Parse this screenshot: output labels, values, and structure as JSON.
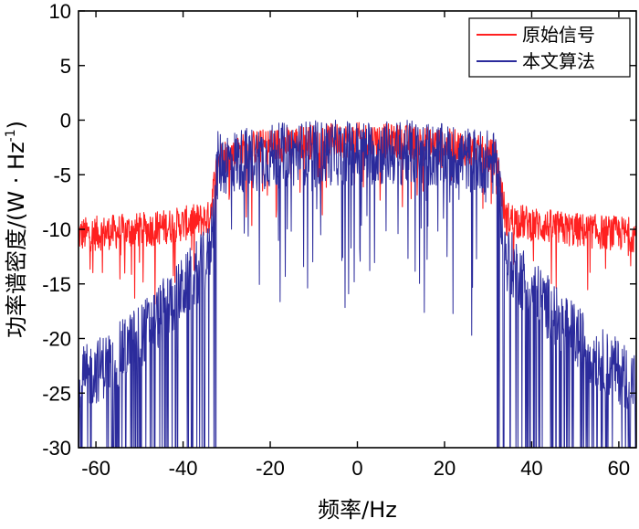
{
  "chart_data": {
    "type": "line",
    "title": "",
    "xlabel": "频率/Hz",
    "ylabel": "功率谱密度/(W · Hz",
    "ylabel_superscript": "-1",
    "ylabel_close": ")",
    "xlim": [
      -64,
      64
    ],
    "ylim": [
      -30,
      10
    ],
    "xticks": [
      -60,
      -40,
      -20,
      0,
      20,
      40,
      60
    ],
    "xtick_labels": [
      "-60",
      "-40",
      "-20",
      "0",
      "20",
      "40",
      "60"
    ],
    "yticks": [
      10,
      5,
      0,
      -5,
      -10,
      -15,
      -20,
      -25,
      -30
    ],
    "ytick_labels": [
      "10",
      "5",
      "0",
      "-5",
      "-10",
      "-15",
      "-20",
      "-25",
      "-30"
    ],
    "grid": false,
    "legend_position": "top-right",
    "passband_edges": [
      -32,
      32
    ],
    "series": [
      {
        "name": "原始信号",
        "color": "#ff2020",
        "profile": {
          "x": [
            -64,
            -48,
            -40,
            -34,
            -32,
            -24,
            -12,
            0,
            12,
            24,
            32,
            34,
            40,
            48,
            64
          ],
          "y": [
            -10.5,
            -10.0,
            -9.5,
            -9.0,
            -3.5,
            -2.5,
            -2.0,
            -1.8,
            -2.0,
            -2.5,
            -3.5,
            -9.0,
            -9.5,
            -10.0,
            -10.5
          ]
        },
        "noise_amplitude": 1.6
      },
      {
        "name": "本文算法",
        "color": "#2b2b9c",
        "profile": {
          "x": [
            -64,
            -56,
            -48,
            -40,
            -34,
            -32,
            -24,
            -12,
            0,
            12,
            24,
            32,
            34,
            40,
            48,
            56,
            64
          ],
          "y": [
            -24.0,
            -22.0,
            -19.0,
            -15.5,
            -12.5,
            -4.0,
            -3.5,
            -3.0,
            -3.0,
            -3.0,
            -3.5,
            -4.0,
            -12.5,
            -15.5,
            -19.0,
            -22.0,
            -24.0
          ]
        },
        "noise_amplitude": 3.0,
        "dips_to_floor": true
      }
    ]
  }
}
